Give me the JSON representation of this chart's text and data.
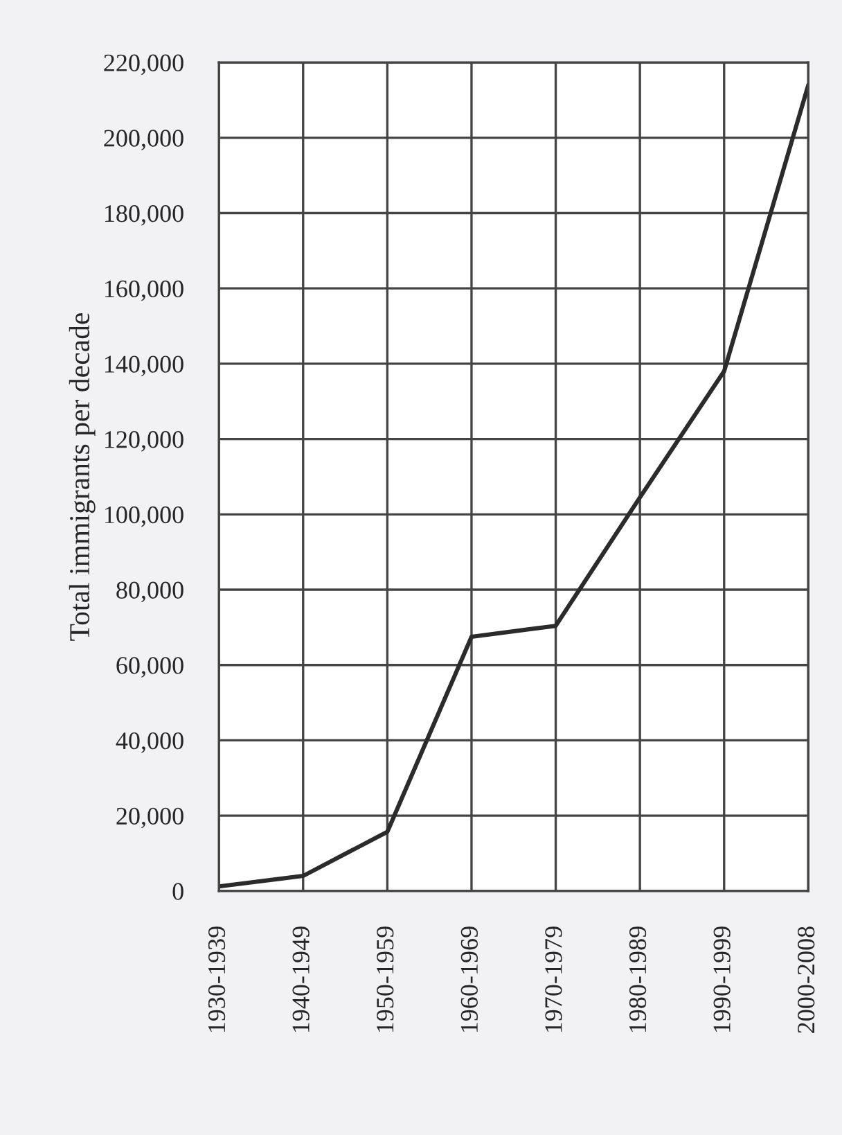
{
  "chart_data": {
    "type": "line",
    "ylabel": "Total immigrants per decade",
    "categories": [
      "1930-1939",
      "1940-1949",
      "1950-1959",
      "1960-1969",
      "1970-1979",
      "1980-1989",
      "1990-1999",
      "2000-2008"
    ],
    "series": [
      {
        "color": "#2b2b2b",
        "values": [
          1200,
          4000,
          15700,
          67500,
          70400,
          104500,
          138000,
          214000
        ]
      }
    ],
    "ylim": [
      0,
      220000
    ],
    "yticks": [
      {
        "value": 0,
        "label": "0"
      },
      {
        "value": 20000,
        "label": "20,000"
      },
      {
        "value": 40000,
        "label": "40,000"
      },
      {
        "value": 60000,
        "label": "60,000"
      },
      {
        "value": 80000,
        "label": "80,000"
      },
      {
        "value": 100000,
        "label": "100,000"
      },
      {
        "value": 120000,
        "label": "120,000"
      },
      {
        "value": 140000,
        "label": "140,000"
      },
      {
        "value": 160000,
        "label": "160,000"
      },
      {
        "value": 180000,
        "label": "180,000"
      },
      {
        "value": 200000,
        "label": "200,000"
      },
      {
        "value": 220000,
        "label": "220,000"
      }
    ],
    "grid": true,
    "marker": "none",
    "line_style": "solid"
  }
}
